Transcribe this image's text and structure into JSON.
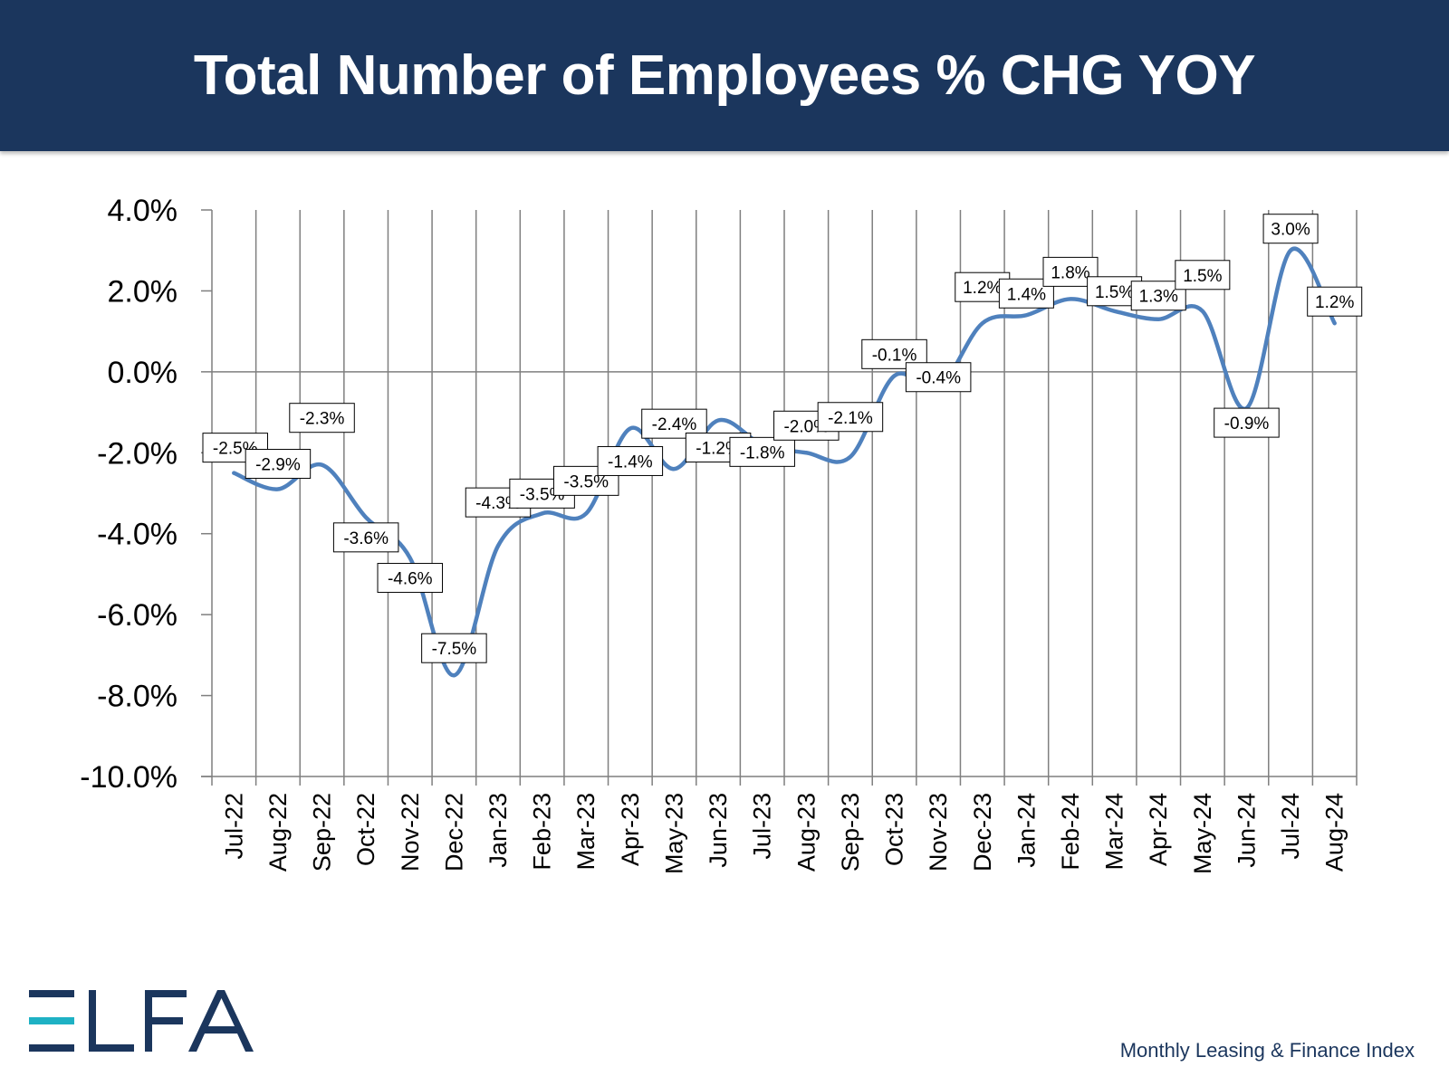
{
  "header": {
    "title": "Total Number of Employees % CHG YOY"
  },
  "chart_data": {
    "type": "line",
    "title": "Total Number of Employees % CHG YOY",
    "xlabel": "",
    "ylabel": "",
    "ylim": [
      -10,
      4
    ],
    "yticks": [
      4,
      2,
      0,
      -2,
      -4,
      -6,
      -8,
      -10
    ],
    "ytick_labels": [
      "4.0%",
      "2.0%",
      "0.0%",
      "-2.0%",
      "-4.0%",
      "-6.0%",
      "-8.0%",
      "-10.0%"
    ],
    "categories": [
      "Jul-22",
      "Aug-22",
      "Sep-22",
      "Oct-22",
      "Nov-22",
      "Dec-22",
      "Jan-23",
      "Feb-23",
      "Mar-23",
      "Apr-23",
      "May-23",
      "Jun-23",
      "Jul-23",
      "Aug-23",
      "Sep-23",
      "Oct-23",
      "Nov-23",
      "Dec-23",
      "Jan-24",
      "Feb-24",
      "Mar-24",
      "Apr-24",
      "May-24",
      "Jun-24",
      "Jul-24",
      "Aug-24"
    ],
    "values": [
      -2.5,
      -2.9,
      -2.3,
      -3.6,
      -4.6,
      -7.5,
      -4.3,
      -3.5,
      -3.5,
      -1.4,
      -2.4,
      -1.2,
      -1.8,
      -2.0,
      -2.1,
      -0.1,
      -0.4,
      1.2,
      1.4,
      1.8,
      1.5,
      1.3,
      1.5,
      -0.9,
      3.0,
      1.2
    ],
    "data_labels": [
      "-2.5%",
      "-2.9%",
      "-2.3%",
      "-3.6%",
      "-4.6%",
      "-7.5%",
      "-4.3%",
      "-3.5%",
      "-3.5%",
      "-1.4%",
      "-2.4%",
      "-1.2%",
      "-1.8%",
      "-2.0%",
      "-2.1%",
      "-0.1%",
      "-0.4%",
      "1.2%",
      "1.4%",
      "1.8%",
      "1.5%",
      "1.3%",
      "1.5%",
      "-0.9%",
      "3.0%",
      "1.2%"
    ],
    "grid": "vertical",
    "line_color": "#4f81bd",
    "smooth": true
  },
  "footer": {
    "logo_text": "ELFA",
    "tagline": "Monthly Leasing & Finance Index"
  },
  "colors": {
    "banner": "#1b365d",
    "line": "#4f81bd",
    "logo_accent": "#1eb1c4",
    "logo_main": "#1b365d"
  }
}
